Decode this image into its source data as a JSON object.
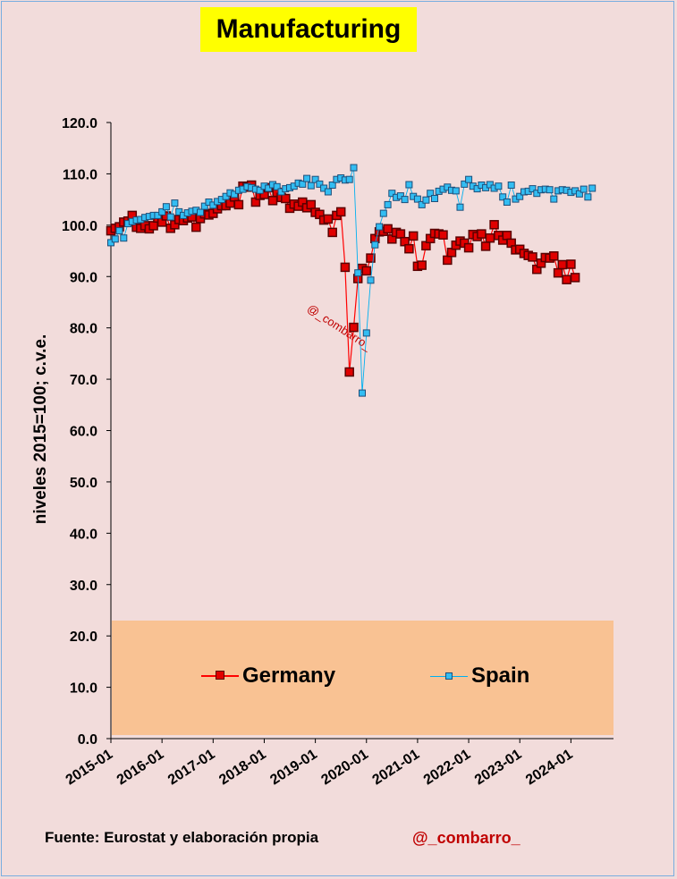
{
  "title": "Manufacturing",
  "source": "Fuente: Eurostat y elaboración propia",
  "handle": "@_combarro_",
  "watermark": "@_combarro_",
  "colors": {
    "background": "#f2dcdb",
    "title_bg": "#ffff00",
    "legend_bg": "#f9c293",
    "germany": "#c00000",
    "germany_fill": "#ff0000",
    "spain": "#00b0f0",
    "spain_edge": "#1f4e79"
  },
  "legend": [
    {
      "name": "Germany"
    },
    {
      "name": "Spain"
    }
  ],
  "chart_data": {
    "type": "line",
    "ylabel": "niveles 2015=100; c.v.e.",
    "xlabel": "",
    "ylim": [
      0,
      120
    ],
    "yticks": [
      "0.0",
      "10.0",
      "20.0",
      "30.0",
      "40.0",
      "50.0",
      "60.0",
      "70.0",
      "80.0",
      "90.0",
      "100.0",
      "110.0",
      "120.0"
    ],
    "xticks": [
      "2015-01",
      "2016-01",
      "2017-01",
      "2018-01",
      "2019-01",
      "2020-01",
      "2021-01",
      "2022-01",
      "2023-01",
      "2024-01"
    ],
    "x_start": "2015-01",
    "grid": false,
    "legend_position": "inside-bottom",
    "series": [
      {
        "name": "Germany",
        "values": [
          98.9,
          99.4,
          99.7,
          100.6,
          100.8,
          101.9,
          99.6,
          99.4,
          99.9,
          99.3,
          99.9,
          101.4,
          100.6,
          101.8,
          99.4,
          100.1,
          101.1,
          100.9,
          101.4,
          101.6,
          99.6,
          101.3,
          102.2,
          102.0,
          102.3,
          103.2,
          103.8,
          103.8,
          104.3,
          105.5,
          104.0,
          107.6,
          107.4,
          107.8,
          104.5,
          105.8,
          106.0,
          107.3,
          104.8,
          106.4,
          105.4,
          105.2,
          103.3,
          104.1,
          103.7,
          104.5,
          103.4,
          104.0,
          102.5,
          102.1,
          101.0,
          101.2,
          98.6,
          101.9,
          102.6,
          91.8,
          71.4,
          80.1,
          89.6,
          91.6,
          91.1,
          93.6,
          97.4,
          98.7,
          98.8,
          99.3,
          97.3,
          98.6,
          98.3,
          96.8,
          95.4,
          97.9,
          92.0,
          92.2,
          96.0,
          97.4,
          98.4,
          98.3,
          98.1,
          93.2,
          94.7,
          96.1,
          96.9,
          96.5,
          95.6,
          98.2,
          97.8,
          98.3,
          95.9,
          97.5,
          100.1,
          98.0,
          97.1,
          98.0,
          96.5,
          95.2,
          95.3,
          94.5,
          94.1,
          93.8,
          91.4,
          92.6,
          93.7,
          93.6,
          94.0,
          90.7,
          92.3,
          89.4,
          92.4,
          89.8
        ]
      },
      {
        "name": "Spain",
        "values": [
          96.6,
          97.3,
          98.9,
          97.5,
          100.3,
          100.7,
          101.0,
          101.1,
          101.5,
          101.7,
          101.9,
          101.9,
          102.6,
          103.6,
          101.6,
          104.3,
          102.6,
          101.9,
          102.4,
          102.7,
          102.9,
          102.5,
          103.7,
          104.5,
          103.9,
          104.6,
          105.0,
          105.6,
          106.3,
          106.0,
          106.8,
          107.0,
          107.5,
          107.3,
          107.0,
          106.8,
          107.6,
          107.2,
          107.9,
          107.5,
          106.5,
          107.1,
          107.3,
          107.6,
          108.2,
          108.0,
          109.1,
          107.7,
          108.9,
          108.0,
          107.2,
          106.5,
          107.8,
          108.9,
          109.2,
          108.8,
          108.9,
          111.2,
          90.7,
          67.3,
          79.0,
          89.3,
          96.2,
          99.7,
          102.3,
          104.0,
          106.2,
          105.4,
          105.7,
          105.0,
          107.9,
          105.6,
          105.1,
          104.0,
          104.9,
          106.2,
          105.2,
          106.6,
          107.0,
          107.4,
          106.8,
          106.7,
          103.5,
          108.0,
          108.9,
          107.6,
          107.1,
          107.8,
          107.3,
          107.9,
          107.2,
          107.6,
          105.5,
          104.5,
          107.8,
          105.1,
          105.6,
          106.5,
          106.6,
          107.1,
          106.2,
          106.9,
          107.0,
          106.9,
          105.1,
          106.7,
          106.9,
          106.8,
          106.4,
          106.7,
          106.1,
          107.0,
          105.5,
          107.2
        ]
      }
    ]
  }
}
